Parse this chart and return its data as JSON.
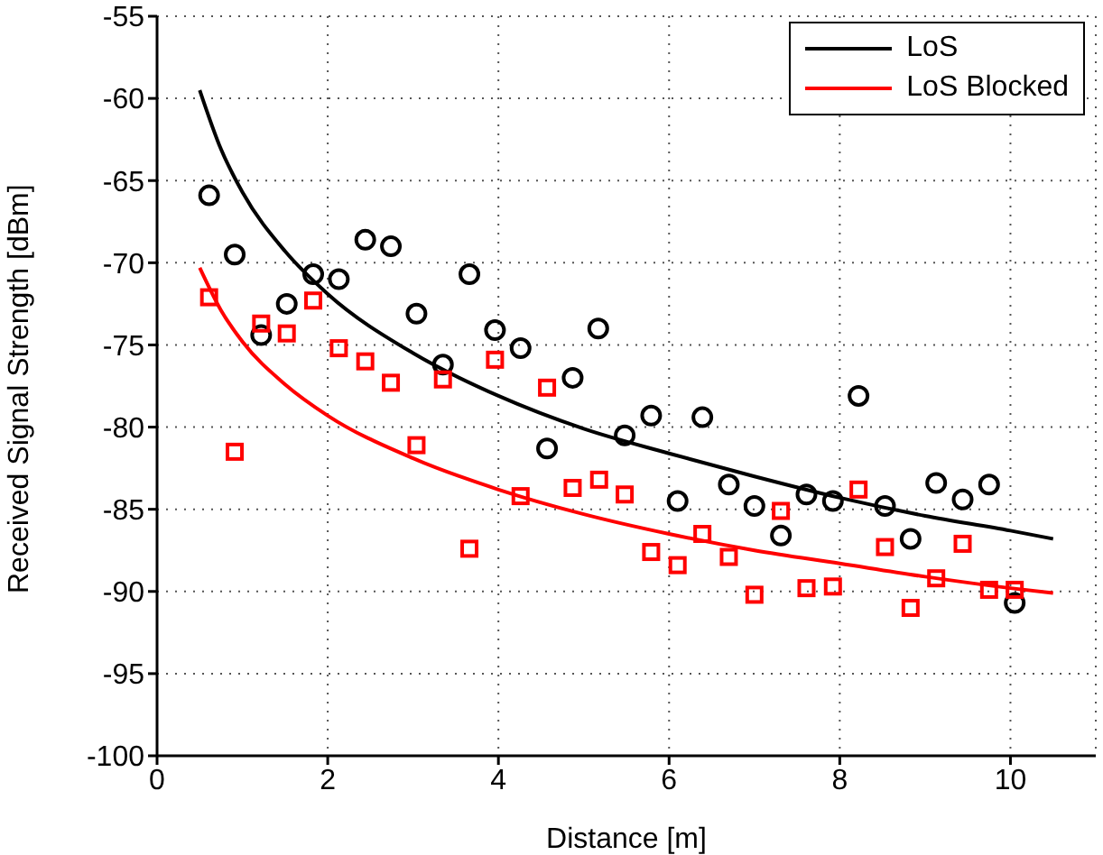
{
  "chart_data": {
    "type": "scatter",
    "xlabel": "Distance [m]",
    "ylabel": "Received Signal Strength [dBm]",
    "xlim": [
      0,
      11
    ],
    "xticks": [
      0,
      2,
      4,
      6,
      8,
      10
    ],
    "ylim": [
      -100,
      -55
    ],
    "yticks": [
      -100,
      -95,
      -90,
      -85,
      -80,
      -75,
      -70,
      -65,
      -60,
      -55
    ],
    "grid": true,
    "legend": "top right",
    "series": [
      {
        "color": "#000000",
        "marker": "circle",
        "x": [
          0.61,
          0.91,
          1.22,
          1.52,
          1.83,
          2.13,
          2.44,
          2.74,
          3.04,
          3.35,
          3.66,
          3.96,
          4.26,
          4.57,
          4.87,
          5.17,
          5.48,
          5.79,
          6.1,
          6.39,
          6.7,
          7.0,
          7.31,
          7.61,
          7.92,
          8.22,
          8.53,
          8.83,
          9.13,
          9.44,
          9.75,
          10.05
        ],
        "values": [
          -65.9,
          -69.5,
          -74.4,
          -72.5,
          -70.7,
          -71.0,
          -68.6,
          -69.0,
          -73.1,
          -76.2,
          -70.7,
          -74.1,
          -75.2,
          -81.3,
          -77.0,
          -74.0,
          -80.5,
          -79.3,
          -84.5,
          -79.4,
          -83.5,
          -84.8,
          -86.6,
          -84.1,
          -84.5,
          -78.1,
          -84.8,
          -86.8,
          -83.4,
          -84.4,
          -83.5,
          -90.7
        ]
      },
      {
        "color": "#ff0000",
        "marker": "square",
        "x": [
          0.61,
          0.91,
          1.22,
          1.52,
          1.83,
          2.13,
          2.44,
          2.74,
          3.04,
          3.35,
          3.66,
          3.96,
          4.26,
          4.57,
          4.87,
          5.18,
          5.48,
          5.79,
          6.1,
          6.39,
          6.7,
          7.0,
          7.31,
          7.61,
          7.92,
          8.22,
          8.53,
          8.83,
          9.13,
          9.44,
          9.75,
          10.05
        ],
        "values": [
          -72.1,
          -81.5,
          -73.7,
          -74.3,
          -72.3,
          -75.2,
          -76.0,
          -77.3,
          -81.1,
          -77.1,
          -87.4,
          -75.9,
          -84.2,
          -77.6,
          -83.7,
          -83.2,
          -84.1,
          -87.6,
          -88.4,
          -86.5,
          -87.9,
          -90.2,
          -85.1,
          -89.8,
          -89.7,
          -83.8,
          -87.3,
          -91.0,
          -89.2,
          -87.1,
          -89.9,
          -89.9
        ]
      },
      {
        "type": "line",
        "name": "LoS",
        "color": "#000000",
        "marker": "none",
        "line_style": "solid",
        "x": [
          0.5,
          0.75,
          1,
          1.5,
          2,
          3,
          4,
          5,
          6,
          7,
          8,
          9,
          10,
          10.5
        ],
        "values": [
          -59.5,
          -63.1,
          -65.7,
          -69.3,
          -71.9,
          -75.5,
          -78.1,
          -80.1,
          -81.6,
          -83.0,
          -84.3,
          -85.4,
          -86.3,
          -86.8
        ]
      },
      {
        "type": "line",
        "name": "LoS Blocked",
        "color": "#ff0000",
        "marker": "none",
        "line_style": "solid",
        "x": [
          0.5,
          0.75,
          1,
          1.5,
          2,
          3,
          4,
          5,
          6,
          7,
          8,
          9,
          10,
          10.5
        ],
        "values": [
          -70.3,
          -72.9,
          -74.8,
          -77.4,
          -79.3,
          -81.9,
          -83.8,
          -85.3,
          -86.5,
          -87.5,
          -88.3,
          -89.1,
          -89.8,
          -90.1
        ]
      }
    ]
  }
}
